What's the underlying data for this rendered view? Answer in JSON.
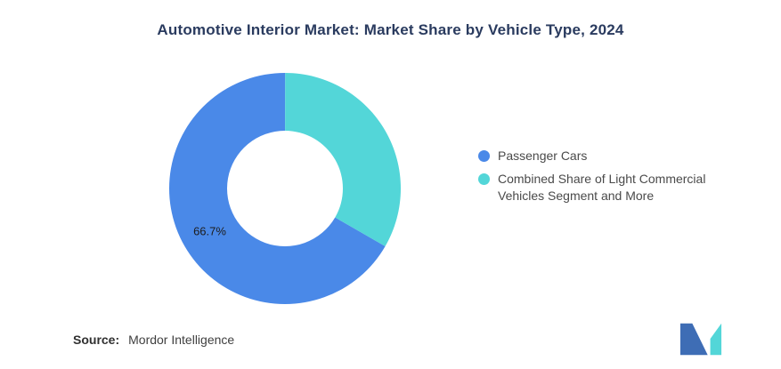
{
  "title": "Automotive Interior Market: Market Share by Vehicle Type, 2024",
  "chart_data": {
    "type": "pie",
    "subtype": "donut",
    "title": "Automotive Interior Market: Market Share by Vehicle Type, 2024",
    "categories": [
      "Passenger Cars",
      "Combined Share of Light Commercial Vehicles Segment and More"
    ],
    "values": [
      66.7,
      33.3
    ],
    "colors": [
      "#4A89E8",
      "#53D6D8"
    ],
    "data_labels": [
      "66.7%",
      ""
    ],
    "rotation_deg": 120,
    "inner_radius_ratio": 0.5,
    "legend_position": "right",
    "grid": false
  },
  "legend": {
    "items": [
      {
        "label": "Passenger Cars",
        "color": "#4A89E8"
      },
      {
        "label": "Combined Share of Light Commercial Vehicles Segment and More",
        "color": "#53D6D8"
      }
    ]
  },
  "source": {
    "label": "Source:",
    "value": "Mordor Intelligence"
  },
  "logo": {
    "name": "mordor-intelligence-logo",
    "blue": "#3E6DB5",
    "teal": "#53D6D8"
  }
}
